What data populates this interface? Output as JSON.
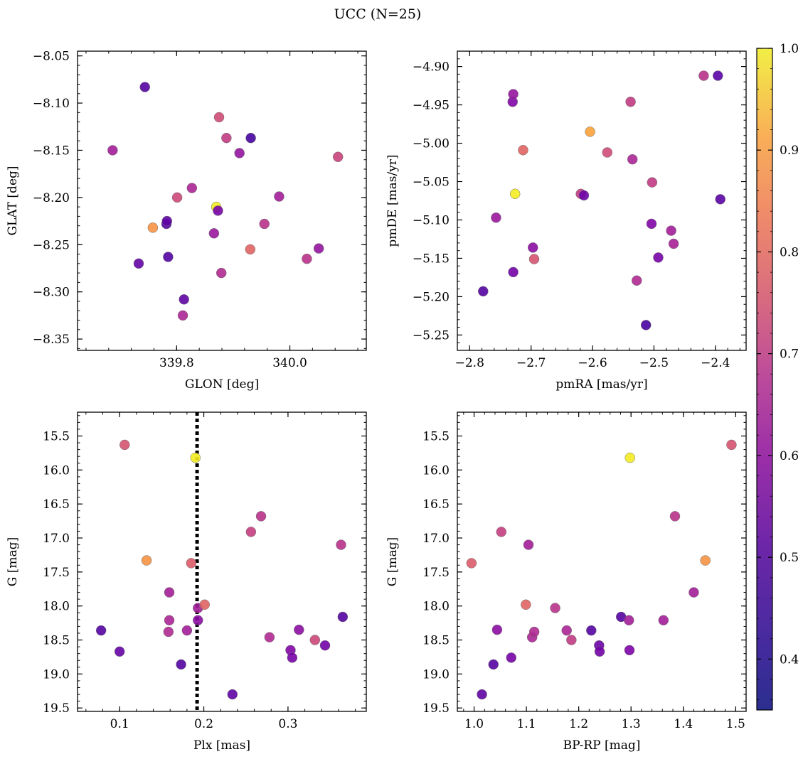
{
  "figure": {
    "title": "UCC (N=25)"
  },
  "colorbar": {
    "min": 0.35,
    "max": 1.0,
    "ticks": [
      0.4,
      0.5,
      0.6,
      0.7,
      0.8,
      0.9,
      1.0
    ],
    "tick_labels": [
      "0.4",
      "0.5",
      "0.6",
      "0.7",
      "0.8",
      "0.9",
      "1.0"
    ],
    "colormap": "plasma"
  },
  "chart_data": [
    {
      "type": "scatter",
      "id": "glon-glat",
      "xlabel": "GLON [deg]",
      "ylabel": "GLAT [deg]",
      "xlim": [
        339.625,
        340.135
      ],
      "ylim": [
        -8.362,
        -8.045
      ],
      "xticks": [
        339.8,
        340.0
      ],
      "xtick_labels": [
        "339.8",
        "340.0"
      ],
      "yticks": [
        -8.35,
        -8.3,
        -8.25,
        -8.2,
        -8.15,
        -8.1,
        -8.05
      ],
      "ytick_labels": [
        "−8.35",
        "−8.30",
        "−8.25",
        "−8.20",
        "−8.15",
        "−8.10",
        "−8.05"
      ],
      "x": [
        339.744,
        339.782,
        339.758,
        339.785,
        339.687,
        339.783,
        339.813,
        339.733,
        339.801,
        339.827,
        339.811,
        339.87,
        339.873,
        339.875,
        339.888,
        339.866,
        339.879,
        339.911,
        339.931,
        339.955,
        339.93,
        339.981,
        340.03,
        340.051,
        340.085
      ],
      "y": [
        -8.083,
        -8.228,
        -8.232,
        -8.263,
        -8.15,
        -8.225,
        -8.308,
        -8.27,
        -8.2,
        -8.19,
        -8.325,
        -8.21,
        -8.214,
        -8.115,
        -8.137,
        -8.238,
        -8.28,
        -8.153,
        -8.137,
        -8.228,
        -8.255,
        -8.199,
        -8.265,
        -8.254,
        -8.157
      ],
      "c": [
        0.4,
        0.4,
        0.82,
        0.4,
        0.55,
        0.42,
        0.42,
        0.43,
        0.65,
        0.57,
        0.57,
        0.98,
        0.46,
        0.66,
        0.62,
        0.53,
        0.58,
        0.52,
        0.38,
        0.6,
        0.72,
        0.55,
        0.6,
        0.52,
        0.64
      ]
    },
    {
      "type": "scatter",
      "id": "pmra-pmde",
      "xlabel": "pmRA [mas/yr]",
      "ylabel": "pmDE [mas/yr]",
      "xlim": [
        -2.82,
        -2.35
      ],
      "ylim": [
        -5.27,
        -4.88
      ],
      "xticks": [
        -2.8,
        -2.7,
        -2.6,
        -2.5,
        -2.4
      ],
      "xtick_labels": [
        "−2.8",
        "−2.7",
        "−2.6",
        "−2.5",
        "−2.4"
      ],
      "yticks": [
        -5.25,
        -5.2,
        -5.15,
        -5.1,
        -5.05,
        -5.0,
        -4.95,
        -4.9
      ],
      "ytick_labels": [
        "−5.25",
        "−5.20",
        "−5.15",
        "−5.10",
        "−5.05",
        "−5.00",
        "−4.95",
        "−4.90"
      ],
      "x": [
        -2.778,
        -2.757,
        -2.73,
        -2.729,
        -2.726,
        -2.713,
        -2.729,
        -2.697,
        -2.695,
        -2.619,
        -2.614,
        -2.604,
        -2.576,
        -2.538,
        -2.535,
        -2.528,
        -2.513,
        -2.504,
        -2.503,
        -2.493,
        -2.472,
        -2.468,
        -2.419,
        -2.396,
        -2.392
      ],
      "y": [
        -5.193,
        -5.097,
        -4.946,
        -4.936,
        -5.066,
        -5.009,
        -5.168,
        -5.136,
        -5.151,
        -5.066,
        -5.068,
        -4.985,
        -5.012,
        -4.946,
        -5.021,
        -5.179,
        -5.237,
        -5.105,
        -5.051,
        -5.149,
        -5.114,
        -5.131,
        -4.912,
        -4.912,
        -5.073
      ],
      "c": [
        0.4,
        0.53,
        0.48,
        0.52,
        0.98,
        0.72,
        0.45,
        0.5,
        0.68,
        0.62,
        0.44,
        0.85,
        0.66,
        0.62,
        0.57,
        0.58,
        0.38,
        0.48,
        0.62,
        0.46,
        0.55,
        0.56,
        0.6,
        0.41,
        0.41
      ]
    },
    {
      "type": "scatter",
      "id": "plx-g",
      "xlabel": "Plx [mas]",
      "ylabel": "G [mag]",
      "xlim": [
        0.05,
        0.393
      ],
      "ylim": [
        19.55,
        15.15
      ],
      "y_inverted": true,
      "xticks": [
        0.1,
        0.2,
        0.3
      ],
      "xtick_labels": [
        "0.1",
        "0.2",
        "0.3"
      ],
      "yticks": [
        15.5,
        16.0,
        16.5,
        17.0,
        17.5,
        18.0,
        18.5,
        19.0,
        19.5
      ],
      "ytick_labels": [
        "15.5",
        "16.0",
        "16.5",
        "17.0",
        "17.5",
        "18.0",
        "18.5",
        "19.0",
        "19.5"
      ],
      "vline": 0.192,
      "x": [
        0.078,
        0.1,
        0.106,
        0.132,
        0.159,
        0.159,
        0.158,
        0.173,
        0.18,
        0.185,
        0.19,
        0.193,
        0.193,
        0.201,
        0.234,
        0.256,
        0.268,
        0.278,
        0.303,
        0.305,
        0.313,
        0.332,
        0.344,
        0.363,
        0.365
      ],
      "y": [
        18.36,
        18.67,
        15.63,
        17.33,
        17.8,
        18.21,
        18.38,
        18.86,
        18.36,
        17.37,
        15.82,
        18.03,
        18.21,
        17.98,
        19.3,
        16.91,
        16.68,
        18.46,
        18.65,
        18.76,
        18.35,
        18.5,
        18.58,
        17.1,
        18.16
      ],
      "c": [
        0.4,
        0.43,
        0.68,
        0.82,
        0.55,
        0.57,
        0.58,
        0.4,
        0.55,
        0.7,
        0.98,
        0.55,
        0.5,
        0.72,
        0.42,
        0.63,
        0.6,
        0.58,
        0.48,
        0.46,
        0.5,
        0.65,
        0.45,
        0.6,
        0.4
      ]
    },
    {
      "type": "scatter",
      "id": "bprp-g",
      "xlabel": "BP-RP [mag]",
      "ylabel": "G [mag]",
      "xlim": [
        0.968,
        1.52
      ],
      "ylim": [
        19.55,
        15.15
      ],
      "y_inverted": true,
      "xticks": [
        1.0,
        1.1,
        1.2,
        1.3,
        1.4,
        1.5
      ],
      "xtick_labels": [
        "1.0",
        "1.1",
        "1.2",
        "1.3",
        "1.4",
        "1.5"
      ],
      "yticks": [
        15.5,
        16.0,
        16.5,
        17.0,
        17.5,
        18.0,
        18.5,
        19.0,
        19.5
      ],
      "ytick_labels": [
        "15.5",
        "16.0",
        "16.5",
        "17.0",
        "17.5",
        "18.0",
        "18.5",
        "19.0",
        "19.5"
      ],
      "x": [
        0.995,
        1.015,
        1.037,
        1.044,
        1.052,
        1.071,
        1.099,
        1.104,
        1.111,
        1.115,
        1.155,
        1.177,
        1.186,
        1.224,
        1.239,
        1.24,
        1.281,
        1.296,
        1.297,
        1.298,
        1.362,
        1.384,
        1.42,
        1.442,
        1.492
      ],
      "y": [
        17.37,
        19.3,
        18.86,
        18.35,
        16.91,
        18.76,
        17.98,
        17.1,
        18.46,
        18.38,
        18.03,
        18.36,
        18.5,
        18.36,
        18.58,
        18.67,
        18.16,
        18.21,
        18.65,
        15.82,
        18.21,
        16.68,
        17.8,
        17.33,
        15.63
      ],
      "c": [
        0.7,
        0.42,
        0.4,
        0.5,
        0.63,
        0.46,
        0.72,
        0.55,
        0.57,
        0.58,
        0.6,
        0.57,
        0.62,
        0.4,
        0.44,
        0.45,
        0.4,
        0.55,
        0.47,
        0.98,
        0.55,
        0.6,
        0.55,
        0.82,
        0.68
      ]
    }
  ]
}
